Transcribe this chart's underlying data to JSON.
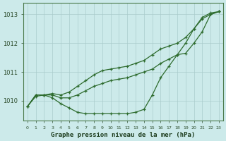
{
  "title": "Graphe pression niveau de la mer (hPa)",
  "background_color": "#cceaea",
  "grid_color": "#aacccc",
  "line_color": "#2d6b2d",
  "marker_color": "#2d6b2d",
  "xlim_min": -0.5,
  "xlim_max": 23.5,
  "ylim": [
    1009.3,
    1013.4
  ],
  "yticks": [
    1010,
    1011,
    1012,
    1013
  ],
  "xtick_labels": [
    "0",
    "1",
    "2",
    "3",
    "4",
    "5",
    "6",
    "7",
    "8",
    "9",
    "10",
    "11",
    "12",
    "13",
    "14",
    "15",
    "16",
    "17",
    "18",
    "19",
    "20",
    "21",
    "22",
    "23"
  ],
  "series": [
    {
      "x": [
        0,
        1,
        2,
        3,
        4,
        5,
        6,
        7,
        8,
        9,
        10,
        11,
        12,
        13,
        14,
        15,
        16,
        17,
        18,
        19,
        20,
        21,
        22,
        23
      ],
      "y": [
        1009.8,
        1010.2,
        1010.2,
        1010.25,
        1010.2,
        1010.3,
        1010.5,
        1010.7,
        1010.9,
        1011.05,
        1011.1,
        1011.15,
        1011.2,
        1011.3,
        1011.4,
        1011.6,
        1011.8,
        1011.9,
        1012.0,
        1012.2,
        1012.5,
        1012.85,
        1013.0,
        1013.1
      ]
    },
    {
      "x": [
        0,
        1,
        2,
        3,
        4,
        5,
        6,
        7,
        8,
        9,
        10,
        11,
        12,
        13,
        14,
        15,
        16,
        17,
        18,
        19,
        20,
        21,
        22,
        23
      ],
      "y": [
        1009.8,
        1010.15,
        1010.2,
        1010.2,
        1010.1,
        1010.1,
        1010.2,
        1010.35,
        1010.5,
        1010.6,
        1010.7,
        1010.75,
        1010.8,
        1010.9,
        1011.0,
        1011.1,
        1011.3,
        1011.45,
        1011.6,
        1011.65,
        1012.0,
        1012.4,
        1013.0,
        1013.1
      ]
    },
    {
      "x": [
        0,
        1,
        2,
        3,
        4,
        5,
        6,
        7,
        8,
        9,
        10,
        11,
        12,
        13,
        14,
        15,
        16,
        17,
        18,
        19,
        20,
        21,
        22,
        23
      ],
      "y": [
        1009.8,
        1010.2,
        1010.2,
        1010.1,
        1009.9,
        1009.75,
        1009.6,
        1009.55,
        1009.55,
        1009.55,
        1009.55,
        1009.55,
        1009.55,
        1009.6,
        1009.7,
        1010.2,
        1010.8,
        1011.2,
        1011.6,
        1012.0,
        1012.5,
        1012.9,
        1013.05,
        1013.1
      ]
    }
  ]
}
